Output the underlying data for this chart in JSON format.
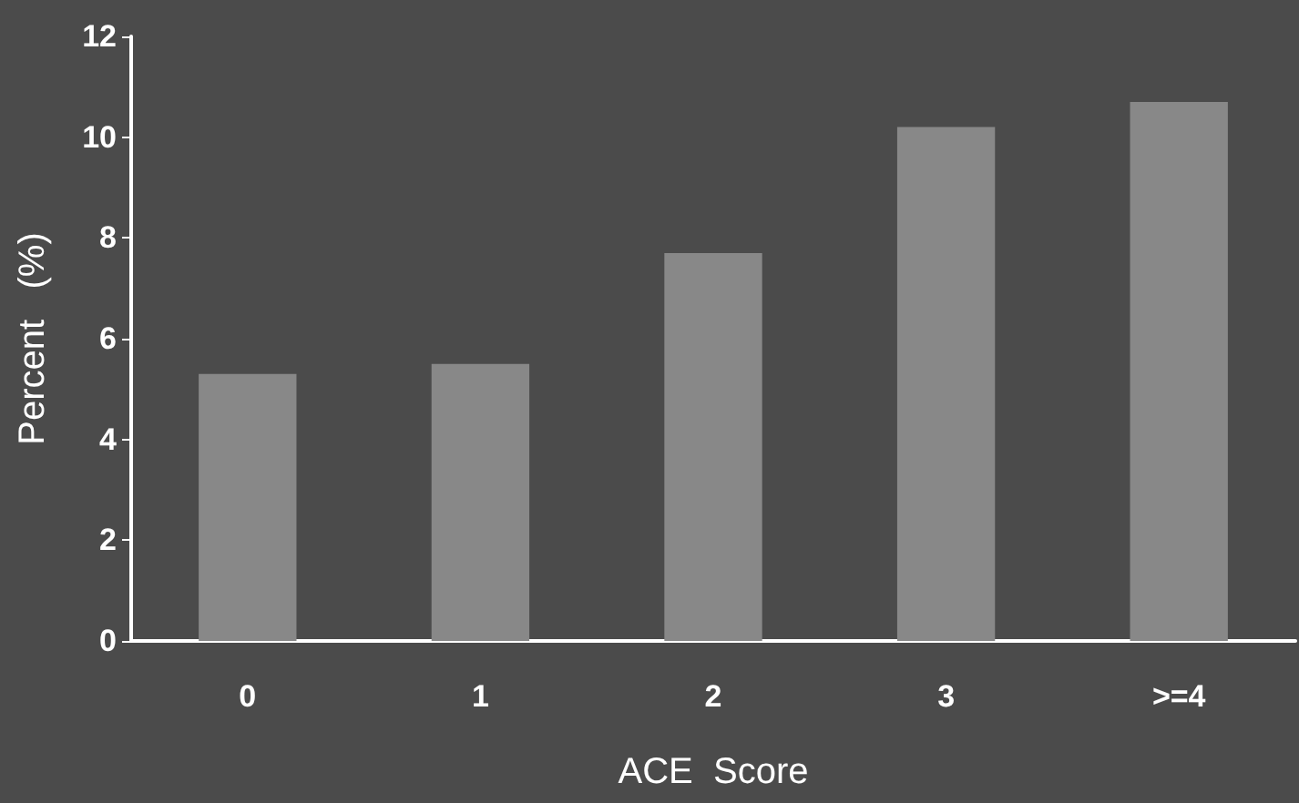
{
  "chart_data": {
    "type": "bar",
    "xlabel": "ACE  Score",
    "ylabel": "Percent   (%)",
    "categories": [
      "0",
      "1",
      "2",
      "3",
      ">=4"
    ],
    "series": [
      {
        "color": "#888888",
        "values": [
          5.3,
          5.5,
          7.7,
          10.2,
          10.7
        ]
      }
    ],
    "ylim": [
      0,
      12
    ],
    "yticks": [
      0,
      2,
      4,
      6,
      8,
      10,
      12
    ],
    "grid": false
  }
}
